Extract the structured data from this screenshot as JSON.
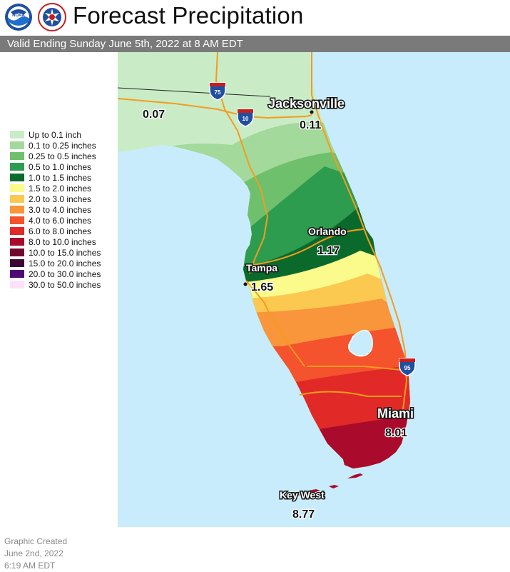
{
  "header": {
    "title": "Forecast Precipitation",
    "logo_noaa_text": "NOAA",
    "logo_nws_text": "NATIONAL WEATHER SERVICE"
  },
  "valid_bar": {
    "text": "Valid Ending Sunday June 5th, 2022 at 8 AM EDT"
  },
  "legend": {
    "items": [
      {
        "label": "Up to 0.1 inch",
        "color": "#c9ecc6"
      },
      {
        "label": "0.1 to 0.25 inches",
        "color": "#a3d99a"
      },
      {
        "label": "0.25 to 0.5 inches",
        "color": "#6fc06c"
      },
      {
        "label": "0.5 to 1.0 inches",
        "color": "#2e9c4f"
      },
      {
        "label": "1.0 to 1.5 inches",
        "color": "#0a6a2c"
      },
      {
        "label": "1.5 to 2.0 inches",
        "color": "#fbfb8c"
      },
      {
        "label": "2.0 to 3.0 inches",
        "color": "#fbc850"
      },
      {
        "label": "3.0 to 4.0 inches",
        "color": "#f9953a"
      },
      {
        "label": "4.0 to 6.0 inches",
        "color": "#f5522e"
      },
      {
        "label": "6.0 to 8.0 inches",
        "color": "#e12a27"
      },
      {
        "label": "8.0 to 10.0 inches",
        "color": "#aa0a2c"
      },
      {
        "label": "10.0 to 15.0 inches",
        "color": "#72062c"
      },
      {
        "label": "15.0 to 20.0 inches",
        "color": "#3e0633"
      },
      {
        "label": "20.0 to 30.0 inches",
        "color": "#4c0a72"
      },
      {
        "label": "30.0 to 50.0 inches",
        "color": "#fde1fb"
      }
    ]
  },
  "created": {
    "line1": "Graphic Created",
    "line2": "June 2nd, 2022",
    "line3": "6:19 AM EDT"
  },
  "map": {
    "water_color": "#c8ecfb",
    "road_color": "#f39c1e",
    "interstate_shields": [
      "75",
      "10",
      "95"
    ],
    "cities": [
      {
        "name": "Jacksonville",
        "value": "0.11"
      },
      {
        "name": "Orlando",
        "value": "1.17"
      },
      {
        "name": "Tampa",
        "value": "1.65"
      },
      {
        "name": "Miami",
        "value": "8.01"
      },
      {
        "name": "Key West",
        "value": "8.77"
      }
    ],
    "west_value": "0.07"
  }
}
